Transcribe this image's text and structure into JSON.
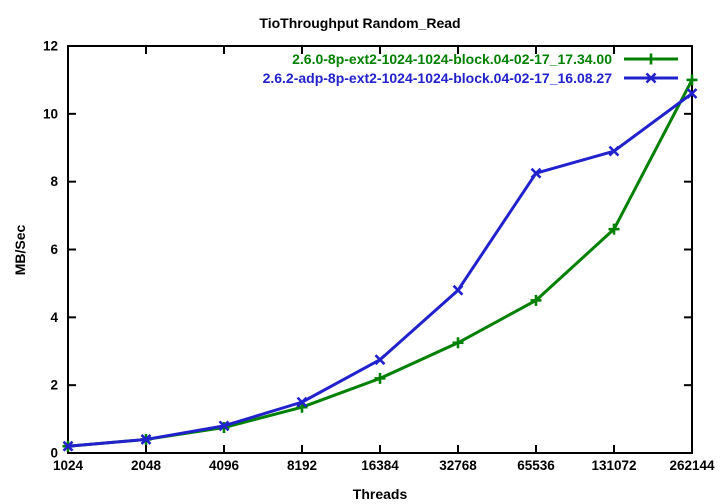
{
  "chart_data": {
    "type": "line",
    "title": "TioThroughput Random_Read",
    "xlabel": "Threads",
    "ylabel": "MB/Sec",
    "x_scale": "log2-categorical",
    "categories": [
      "1024",
      "2048",
      "4096",
      "8192",
      "16384",
      "32768",
      "65536",
      "131072",
      "262144"
    ],
    "ylim": [
      0,
      12
    ],
    "yticks": [
      0,
      2,
      4,
      6,
      8,
      10,
      12
    ],
    "grid": false,
    "legend_position": "top-right-inside",
    "background_color": "#ffffff",
    "text_color": "#000000",
    "border_color": "#000000",
    "series": [
      {
        "name": "2.6.0-8p-ext2-1024-1024-block.04-02-17_17.34.00",
        "color": "#008000",
        "marker": "plus",
        "values": [
          0.2,
          0.4,
          0.75,
          1.35,
          2.2,
          3.25,
          4.5,
          6.6,
          11.0
        ]
      },
      {
        "name": "2.6.2-adp-8p-ext2-1024-1024-block.04-02-17_16.08.27",
        "color": "#2222cc",
        "marker": "cross",
        "values": [
          0.2,
          0.4,
          0.8,
          1.5,
          2.75,
          4.8,
          8.25,
          8.9,
          10.6
        ]
      }
    ]
  }
}
